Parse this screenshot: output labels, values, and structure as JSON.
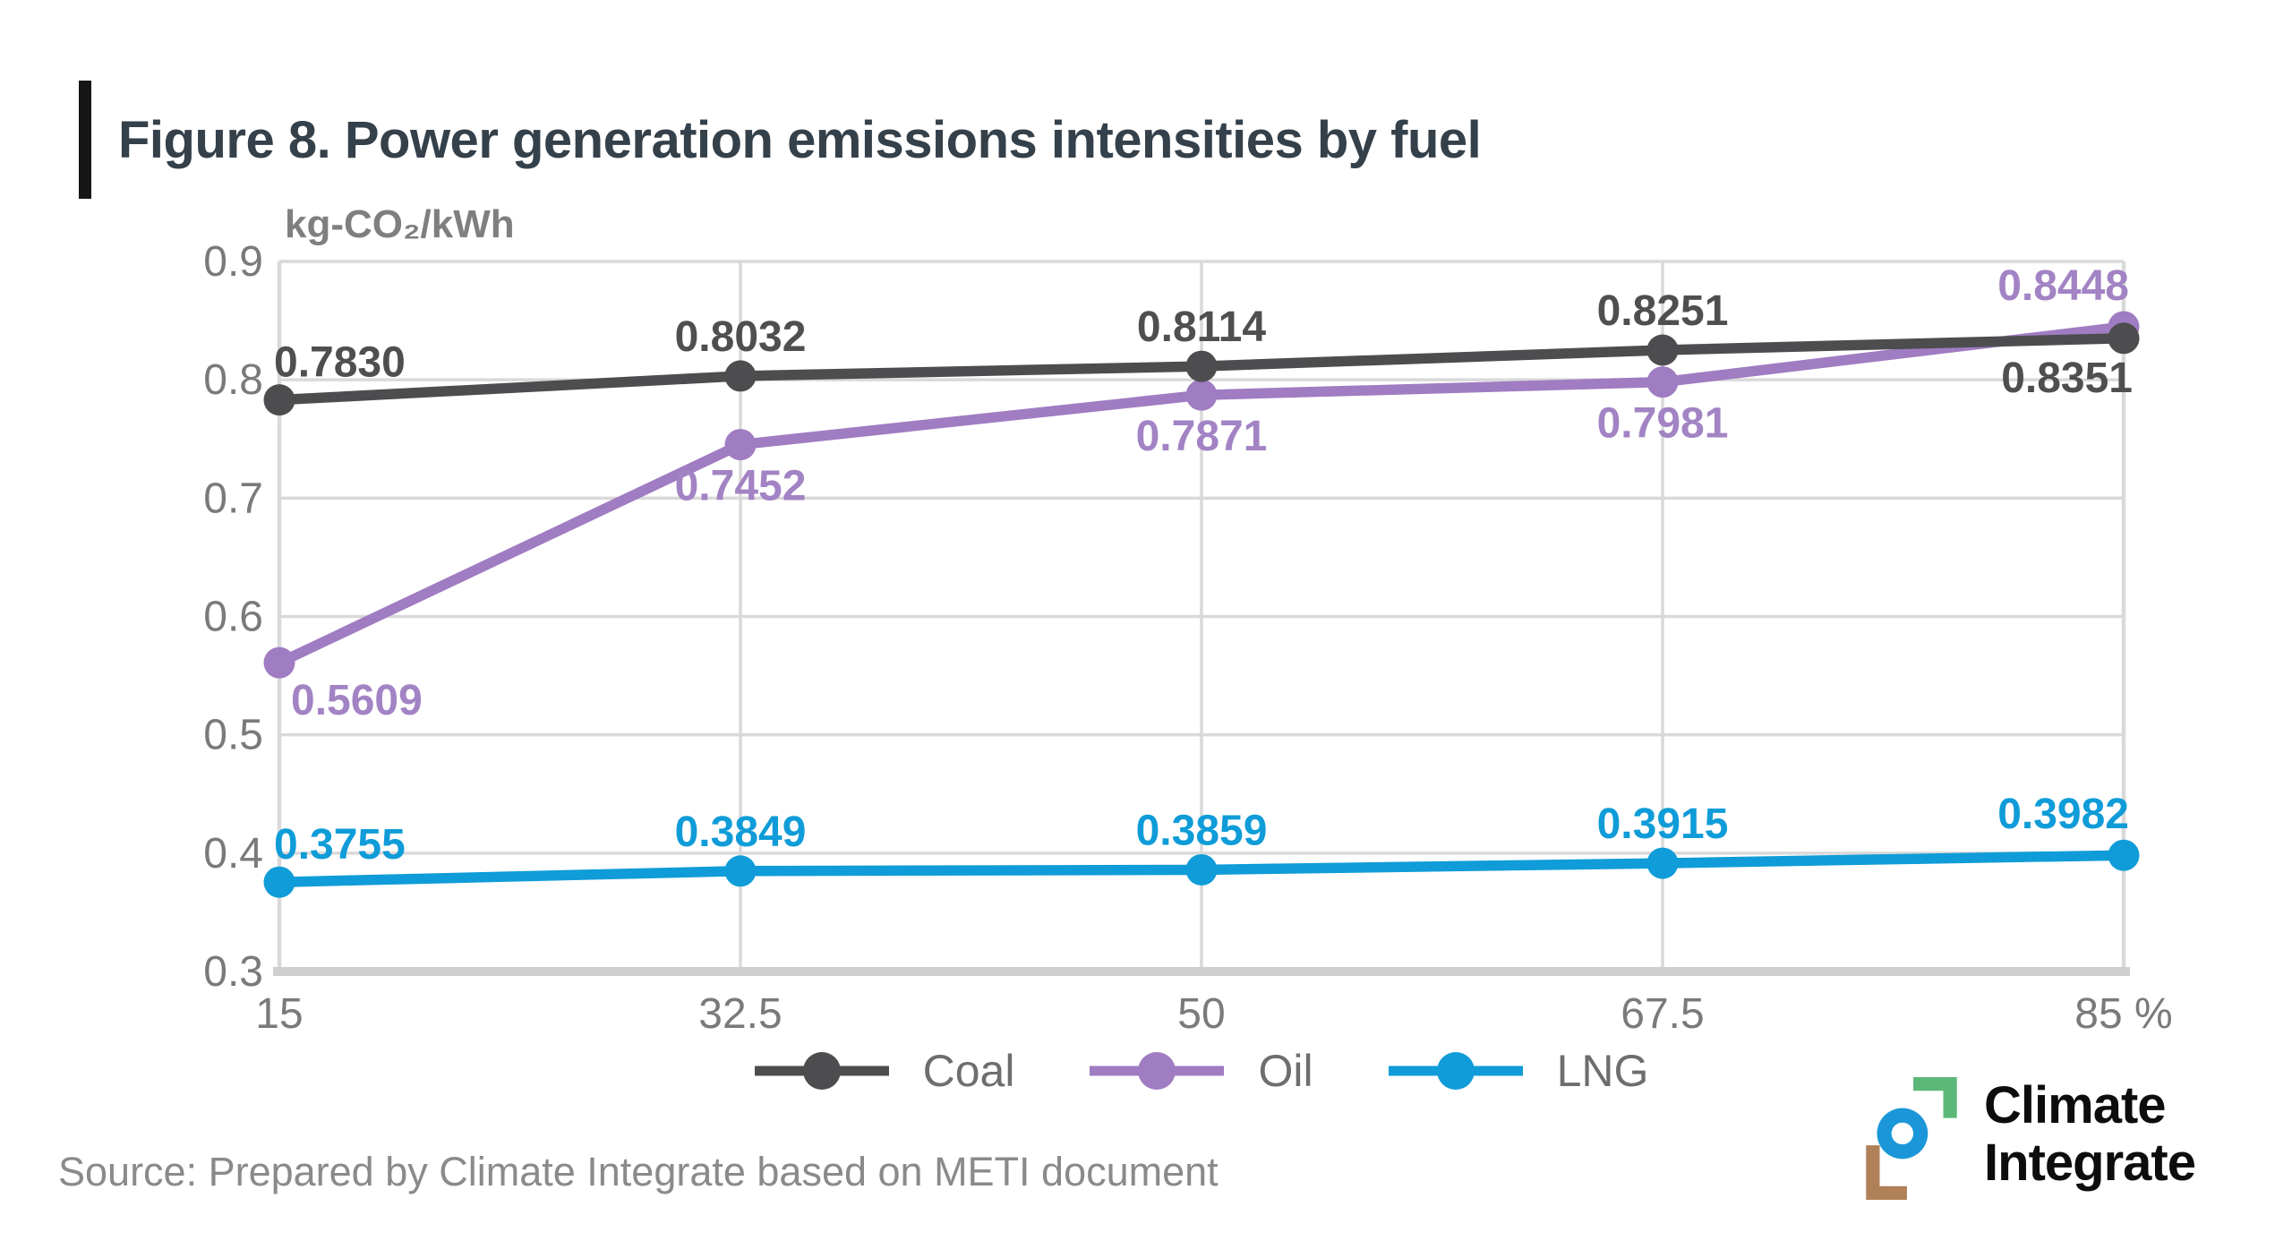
{
  "header": {
    "title": "Figure 8. Power generation emissions intensities by fuel"
  },
  "chart_data": {
    "type": "line",
    "title": "Figure 8. Power generation emissions intensities by fuel",
    "unit_label": "kg-CO₂/kWh",
    "x_values": [
      15,
      32.5,
      50,
      67.5,
      85
    ],
    "x_tick_labels": [
      "15",
      "32.5",
      "50",
      "67.5",
      "85 %"
    ],
    "ylim": [
      0.3,
      0.9
    ],
    "y_ticks": [
      0.9,
      0.8,
      0.7,
      0.6,
      0.5,
      0.4,
      0.3
    ],
    "y_tick_labels": [
      "0.9",
      "0.8",
      "0.7",
      "0.6",
      "0.5",
      "0.4",
      "0.3"
    ],
    "grid": true,
    "legend_position": "bottom",
    "axis_colors": {
      "grid": "#d9d9d9",
      "axis_line": "#cfcfcf",
      "tick_text": "#7a7a7a"
    },
    "series": [
      {
        "name": "Coal",
        "color": "#4d4d4f",
        "label_color": "#4f4f4f",
        "values": [
          0.783,
          0.8032,
          0.8114,
          0.8251,
          0.8351
        ],
        "labels": [
          "0.7830",
          "0.8032",
          "0.8114",
          "0.8251",
          "0.8351"
        ],
        "label_pos": [
          "above-start",
          "above",
          "above",
          "above",
          "below-end"
        ]
      },
      {
        "name": "Oil",
        "color": "#a07cc2",
        "label_color": "#a283c4",
        "values": [
          0.5609,
          0.7452,
          0.7871,
          0.7981,
          0.8448
        ],
        "labels": [
          "0.5609",
          "0.7452",
          "0.7871",
          "0.7981",
          "0.8448"
        ],
        "label_pos": [
          "below-start",
          "below",
          "below",
          "below",
          "above-end"
        ]
      },
      {
        "name": "LNG",
        "color": "#0f9cd8",
        "label_color": "#0f9cd8",
        "values": [
          0.3755,
          0.3849,
          0.3859,
          0.3915,
          0.3982
        ],
        "labels": [
          "0.3755",
          "0.3849",
          "0.3859",
          "0.3915",
          "0.3982"
        ],
        "label_pos": [
          "above-start",
          "above",
          "above",
          "above",
          "above-end"
        ]
      }
    ]
  },
  "source": {
    "text": "Source: Prepared by Climate Integrate based on METI document"
  },
  "logo": {
    "text_line1": "Climate",
    "text_line2": "Integrate",
    "colors": {
      "green": "#5cb878",
      "blue": "#1b97d9",
      "brown": "#b08059",
      "text": "#0d0d0d"
    }
  }
}
